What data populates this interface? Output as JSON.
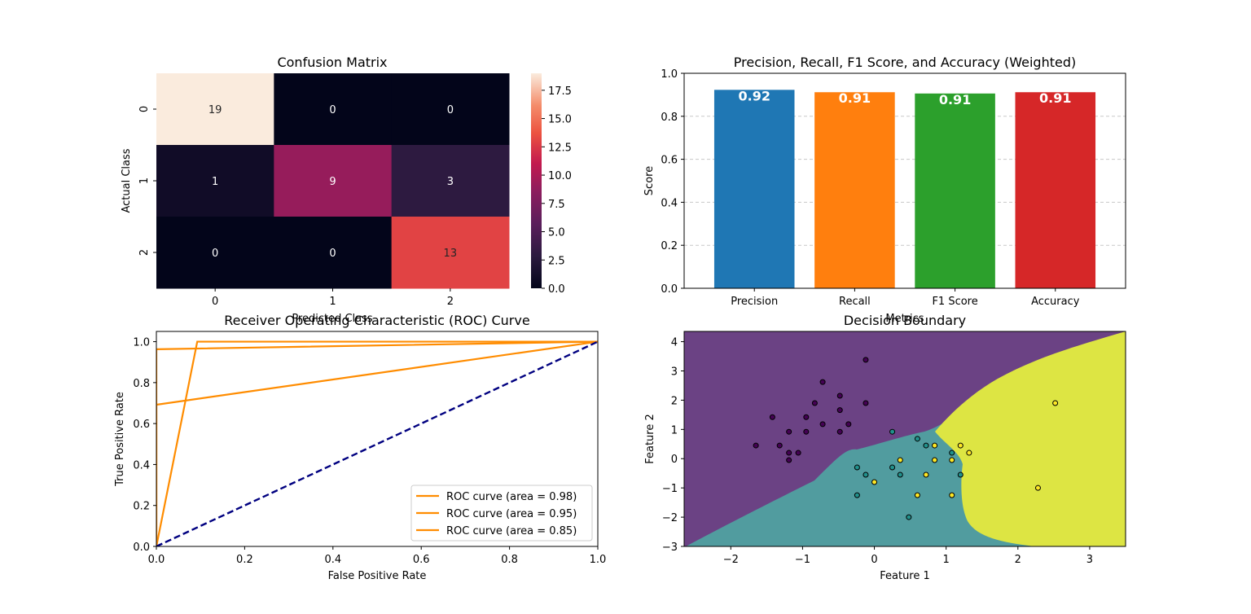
{
  "chart_data": [
    {
      "type": "heatmap",
      "title": "Confusion Matrix",
      "xlabel": "Predicted Class",
      "ylabel": "Actual Class",
      "x_ticks": [
        "0",
        "1",
        "2"
      ],
      "y_ticks": [
        "0",
        "1",
        "2"
      ],
      "matrix": [
        [
          19,
          0,
          0
        ],
        [
          1,
          9,
          3
        ],
        [
          0,
          0,
          13
        ]
      ],
      "colorbar": {
        "min": 0,
        "max": 19,
        "ticks": [
          "0.0",
          "2.5",
          "5.0",
          "7.5",
          "10.0",
          "12.5",
          "15.0",
          "17.5"
        ]
      },
      "colormap": "rocket"
    },
    {
      "type": "bar",
      "title": "Precision, Recall, F1 Score, and Accuracy (Weighted)",
      "xlabel": "Metrics",
      "ylabel": "Score",
      "ylim": [
        0,
        1
      ],
      "y_ticks": [
        "0.0",
        "0.2",
        "0.4",
        "0.6",
        "0.8",
        "1.0"
      ],
      "grid": "y-dashed",
      "categories": [
        "Precision",
        "Recall",
        "F1 Score",
        "Accuracy"
      ],
      "values": [
        0.923,
        0.912,
        0.906,
        0.912
      ],
      "value_labels": [
        "0.92",
        "0.91",
        "0.91",
        "0.91"
      ],
      "colors": [
        "#1f77b4",
        "#ff7f0e",
        "#2ca02c",
        "#d62728"
      ]
    },
    {
      "type": "line",
      "title": "Receiver Operating Characteristic (ROC) Curve",
      "xlabel": "False Positive Rate",
      "ylabel": "True Positive Rate",
      "xlim": [
        0,
        1
      ],
      "ylim": [
        0,
        1.05
      ],
      "x_ticks": [
        "0.0",
        "0.2",
        "0.4",
        "0.6",
        "0.8",
        "1.0"
      ],
      "y_ticks": [
        "0.0",
        "0.2",
        "0.4",
        "0.6",
        "0.8",
        "1.0"
      ],
      "legend_position": "bottom-right",
      "series": [
        {
          "name": "ROC curve (area = 0.98)",
          "color": "#ff8c00",
          "x": [
            0,
            0,
            1
          ],
          "y": [
            0,
            0.963,
            1
          ]
        },
        {
          "name": "ROC curve (area = 0.95)",
          "color": "#ff8c00",
          "x": [
            0,
            0.0926,
            1
          ],
          "y": [
            0,
            1,
            1
          ]
        },
        {
          "name": "ROC curve (area = 0.85)",
          "color": "#ff8c00",
          "x": [
            0,
            0,
            1
          ],
          "y": [
            0,
            0.692,
            1
          ]
        }
      ],
      "diagonal": {
        "x": [
          0,
          1
        ],
        "y": [
          0,
          1
        ],
        "color": "#000080",
        "style": "dashed"
      }
    },
    {
      "type": "scatter",
      "title": "Decision Boundary",
      "xlabel": "Feature 1",
      "ylabel": "Feature 2",
      "xlim": [
        -2.65,
        3.5
      ],
      "ylim": [
        -3,
        4.35
      ],
      "x_ticks": [
        "−2",
        "−1",
        "0",
        "1",
        "2",
        "3"
      ],
      "y_ticks": [
        "−3",
        "−2",
        "−1",
        "0",
        "1",
        "2",
        "3",
        "4"
      ],
      "region_colors": [
        "#6b4284",
        "#519c9f",
        "#dde543"
      ],
      "point_colors": [
        "#440154",
        "#21918c",
        "#fde725"
      ],
      "points": [
        {
          "x": -1.65,
          "y": 0.45,
          "c": 0
        },
        {
          "x": -1.42,
          "y": 1.42,
          "c": 0
        },
        {
          "x": -1.32,
          "y": 0.45,
          "c": 0
        },
        {
          "x": -1.19,
          "y": 0.92,
          "c": 0
        },
        {
          "x": -1.19,
          "y": 0.2,
          "c": 0
        },
        {
          "x": -1.19,
          "y": -0.05,
          "c": 0
        },
        {
          "x": -1.06,
          "y": 0.2,
          "c": 0
        },
        {
          "x": -0.95,
          "y": 0.92,
          "c": 0
        },
        {
          "x": -0.95,
          "y": 1.42,
          "c": 0
        },
        {
          "x": -0.83,
          "y": 1.9,
          "c": 0
        },
        {
          "x": -0.72,
          "y": 2.62,
          "c": 0
        },
        {
          "x": -0.72,
          "y": 1.18,
          "c": 0
        },
        {
          "x": -0.48,
          "y": 2.15,
          "c": 0
        },
        {
          "x": -0.48,
          "y": 1.66,
          "c": 0
        },
        {
          "x": -0.48,
          "y": 0.92,
          "c": 0
        },
        {
          "x": -0.36,
          "y": 1.18,
          "c": 0
        },
        {
          "x": -0.12,
          "y": 3.38,
          "c": 0
        },
        {
          "x": -0.12,
          "y": 1.9,
          "c": 0
        },
        {
          "x": -0.24,
          "y": -0.3,
          "c": 1
        },
        {
          "x": -0.24,
          "y": -1.25,
          "c": 1
        },
        {
          "x": -0.12,
          "y": -0.55,
          "c": 1
        },
        {
          "x": 0.25,
          "y": 0.92,
          "c": 1
        },
        {
          "x": 0.25,
          "y": -0.3,
          "c": 1
        },
        {
          "x": 0.36,
          "y": -0.55,
          "c": 1
        },
        {
          "x": 0.48,
          "y": -2.0,
          "c": 1
        },
        {
          "x": 0.6,
          "y": 0.68,
          "c": 1
        },
        {
          "x": 0.72,
          "y": 0.45,
          "c": 1
        },
        {
          "x": 1.08,
          "y": 0.2,
          "c": 1
        },
        {
          "x": 1.2,
          "y": -0.55,
          "c": 1
        },
        {
          "x": 0.0,
          "y": -0.8,
          "c": 2
        },
        {
          "x": 0.36,
          "y": -0.05,
          "c": 2
        },
        {
          "x": 0.6,
          "y": -1.25,
          "c": 2
        },
        {
          "x": 0.72,
          "y": -0.55,
          "c": 2
        },
        {
          "x": 0.84,
          "y": 0.45,
          "c": 2
        },
        {
          "x": 0.84,
          "y": -0.05,
          "c": 2
        },
        {
          "x": 1.08,
          "y": -0.05,
          "c": 2
        },
        {
          "x": 1.08,
          "y": -1.25,
          "c": 2
        },
        {
          "x": 1.2,
          "y": 0.45,
          "c": 2
        },
        {
          "x": 1.32,
          "y": 0.2,
          "c": 2
        },
        {
          "x": 2.28,
          "y": -1.0,
          "c": 2
        },
        {
          "x": 2.52,
          "y": 1.9,
          "c": 2
        }
      ]
    }
  ]
}
